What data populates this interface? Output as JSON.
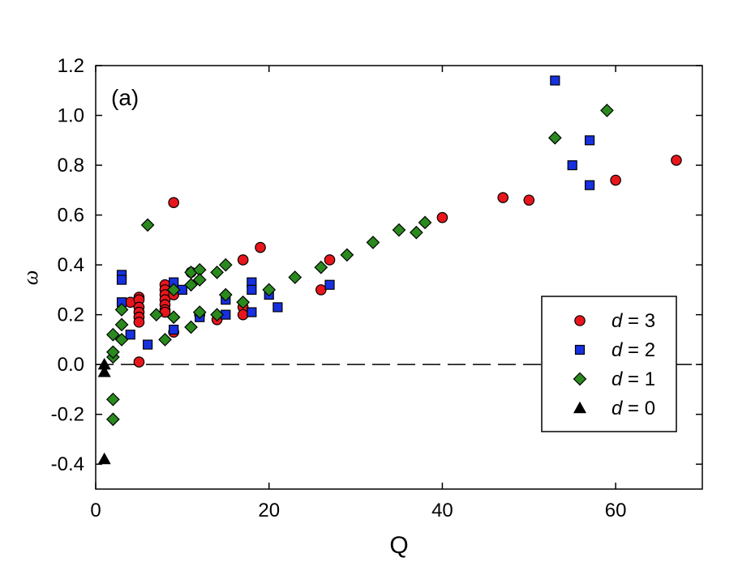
{
  "chart_data": {
    "type": "scatter",
    "panel_label": "(a)",
    "xlabel": "Q",
    "ylabel": "ω",
    "xlim": [
      0,
      70
    ],
    "ylim": [
      -0.5,
      1.2
    ],
    "x_ticks": [
      0,
      20,
      40,
      60
    ],
    "x_tick_labels": [
      "0",
      "20",
      "40",
      "60"
    ],
    "y_ticks": [
      -0.4,
      -0.2,
      0.0,
      0.2,
      0.4,
      0.6,
      0.8,
      1.0,
      1.2
    ],
    "y_tick_labels": [
      "-0.4",
      "-0.2",
      "0.0",
      "0.2",
      "0.4",
      "0.6",
      "0.8",
      "1.0",
      "1.2"
    ],
    "reference_line": {
      "y": 0.0,
      "style": "dashed"
    },
    "legend_position": "lower-right",
    "grid": false,
    "series": [
      {
        "name_var": "d",
        "name_val": " = 3",
        "marker": "circle",
        "color": "#e8161c",
        "points": [
          [
            5,
            0.01
          ],
          [
            4,
            0.25
          ],
          [
            5,
            0.27
          ],
          [
            5,
            0.26
          ],
          [
            5,
            0.23
          ],
          [
            5,
            0.21
          ],
          [
            5,
            0.19
          ],
          [
            5,
            0.17
          ],
          [
            8,
            0.32
          ],
          [
            8,
            0.3
          ],
          [
            8,
            0.28
          ],
          [
            8,
            0.26
          ],
          [
            8,
            0.24
          ],
          [
            8,
            0.22
          ],
          [
            8,
            0.21
          ],
          [
            9,
            0.65
          ],
          [
            9,
            0.28
          ],
          [
            9,
            0.13
          ],
          [
            11,
            0.37
          ],
          [
            12,
            0.2
          ],
          [
            14,
            0.18
          ],
          [
            17,
            0.42
          ],
          [
            17,
            0.23
          ],
          [
            17,
            0.2
          ],
          [
            19,
            0.47
          ],
          [
            26,
            0.3
          ],
          [
            27,
            0.42
          ],
          [
            40,
            0.59
          ],
          [
            47,
            0.67
          ],
          [
            50,
            0.66
          ],
          [
            60,
            0.74
          ],
          [
            67,
            0.82
          ]
        ]
      },
      {
        "name_var": "d",
        "name_val": " = 2",
        "marker": "square",
        "color": "#1730e0",
        "points": [
          [
            3,
            0.36
          ],
          [
            3,
            0.34
          ],
          [
            3,
            0.25
          ],
          [
            4,
            0.12
          ],
          [
            6,
            0.08
          ],
          [
            9,
            0.33
          ],
          [
            9,
            0.14
          ],
          [
            10,
            0.3
          ],
          [
            12,
            0.19
          ],
          [
            15,
            0.26
          ],
          [
            15,
            0.2
          ],
          [
            18,
            0.33
          ],
          [
            18,
            0.3
          ],
          [
            18,
            0.21
          ],
          [
            20,
            0.28
          ],
          [
            21,
            0.23
          ],
          [
            27,
            0.32
          ],
          [
            53,
            1.14
          ],
          [
            55,
            0.8
          ],
          [
            57,
            0.9
          ],
          [
            57,
            0.72
          ]
        ]
      },
      {
        "name_var": "d",
        "name_val": " = 1",
        "marker": "diamond",
        "color": "#2a8a1e",
        "points": [
          [
            2,
            -0.22
          ],
          [
            2,
            -0.14
          ],
          [
            2,
            0.03
          ],
          [
            2,
            0.05
          ],
          [
            2,
            0.12
          ],
          [
            3,
            0.1
          ],
          [
            3,
            0.16
          ],
          [
            3,
            0.22
          ],
          [
            6,
            0.56
          ],
          [
            7,
            0.2
          ],
          [
            8,
            0.1
          ],
          [
            9,
            0.19
          ],
          [
            9,
            0.3
          ],
          [
            11,
            0.15
          ],
          [
            11,
            0.32
          ],
          [
            11,
            0.37
          ],
          [
            12,
            0.38
          ],
          [
            12,
            0.34
          ],
          [
            12,
            0.21
          ],
          [
            14,
            0.37
          ],
          [
            14,
            0.2
          ],
          [
            15,
            0.4
          ],
          [
            15,
            0.28
          ],
          [
            17,
            0.25
          ],
          [
            20,
            0.3
          ],
          [
            23,
            0.35
          ],
          [
            26,
            0.39
          ],
          [
            29,
            0.44
          ],
          [
            32,
            0.49
          ],
          [
            35,
            0.54
          ],
          [
            37,
            0.53
          ],
          [
            38,
            0.57
          ],
          [
            53,
            0.91
          ],
          [
            59,
            1.02
          ]
        ]
      },
      {
        "name_var": "d",
        "name_val": " = 0",
        "marker": "triangle",
        "color": "#000000",
        "points": [
          [
            1,
            -0.38
          ],
          [
            1,
            -0.03
          ],
          [
            1,
            0.0
          ]
        ]
      }
    ]
  }
}
